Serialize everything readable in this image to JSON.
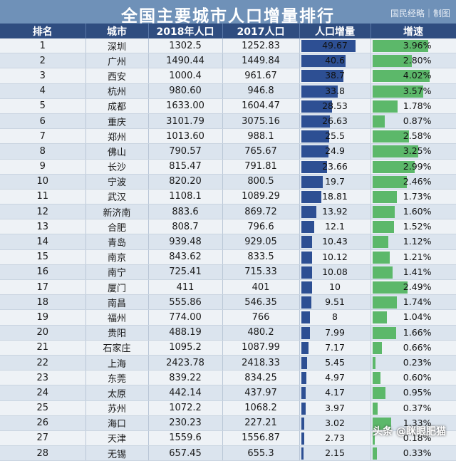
{
  "title": "全国主要城市人口增量排行",
  "brand": "国民经略｜制图",
  "watermark": "头条 @眯眼肥猫",
  "headers": [
    "排名",
    "城市",
    "2018年人口",
    "2017人口",
    "人口增量",
    "增速"
  ],
  "colors": {
    "header_bg": "#2f4d80",
    "bar": "#2d4f93",
    "speed_bar": "#5cb86a",
    "title_bg": "#6f91b8"
  },
  "chart_data": {
    "type": "table",
    "title": "全国主要城市人口增量排行",
    "columns": [
      "排名",
      "城市",
      "2018年人口",
      "2017人口",
      "人口增量",
      "增速"
    ],
    "rows": [
      {
        "rank": "1",
        "city": "深圳",
        "pop2018": "1302.5",
        "pop2017": "1252.83",
        "increase": "49.67",
        "inc_value": 49.67,
        "growth": "3.96%",
        "growth_value": 3.96
      },
      {
        "rank": "2",
        "city": "广州",
        "pop2018": "1490.44",
        "pop2017": "1449.84",
        "increase": "40.6",
        "inc_value": 40.6,
        "growth": "2.80%",
        "growth_value": 2.8
      },
      {
        "rank": "3",
        "city": "西安",
        "pop2018": "1000.4",
        "pop2017": "961.67",
        "increase": "38.7",
        "inc_value": 38.7,
        "growth": "4.02%",
        "growth_value": 4.02
      },
      {
        "rank": "4",
        "city": "杭州",
        "pop2018": "980.60",
        "pop2017": "946.8",
        "increase": "33.8",
        "inc_value": 33.8,
        "growth": "3.57%",
        "growth_value": 3.57
      },
      {
        "rank": "5",
        "city": "成都",
        "pop2018": "1633.00",
        "pop2017": "1604.47",
        "increase": "28.53",
        "inc_value": 28.53,
        "growth": "1.78%",
        "growth_value": 1.78
      },
      {
        "rank": "6",
        "city": "重庆",
        "pop2018": "3101.79",
        "pop2017": "3075.16",
        "increase": "26.63",
        "inc_value": 26.63,
        "growth": "0.87%",
        "growth_value": 0.87
      },
      {
        "rank": "7",
        "city": "郑州",
        "pop2018": "1013.60",
        "pop2017": "988.1",
        "increase": "25.5",
        "inc_value": 25.5,
        "growth": "2.58%",
        "growth_value": 2.58
      },
      {
        "rank": "8",
        "city": "佛山",
        "pop2018": "790.57",
        "pop2017": "765.67",
        "increase": "24.9",
        "inc_value": 24.9,
        "growth": "3.25%",
        "growth_value": 3.25
      },
      {
        "rank": "9",
        "city": "长沙",
        "pop2018": "815.47",
        "pop2017": "791.81",
        "increase": "23.66",
        "inc_value": 23.66,
        "growth": "2.99%",
        "growth_value": 2.99
      },
      {
        "rank": "10",
        "city": "宁波",
        "pop2018": "820.20",
        "pop2017": "800.5",
        "increase": "19.7",
        "inc_value": 19.7,
        "growth": "2.46%",
        "growth_value": 2.46
      },
      {
        "rank": "11",
        "city": "武汉",
        "pop2018": "1108.1",
        "pop2017": "1089.29",
        "increase": "18.81",
        "inc_value": 18.81,
        "growth": "1.73%",
        "growth_value": 1.73
      },
      {
        "rank": "12",
        "city": "新济南",
        "pop2018": "883.6",
        "pop2017": "869.72",
        "increase": "13.92",
        "inc_value": 13.92,
        "growth": "1.60%",
        "growth_value": 1.6
      },
      {
        "rank": "13",
        "city": "合肥",
        "pop2018": "808.7",
        "pop2017": "796.6",
        "increase": "12.1",
        "inc_value": 12.1,
        "growth": "1.52%",
        "growth_value": 1.52
      },
      {
        "rank": "14",
        "city": "青岛",
        "pop2018": "939.48",
        "pop2017": "929.05",
        "increase": "10.43",
        "inc_value": 10.43,
        "growth": "1.12%",
        "growth_value": 1.12
      },
      {
        "rank": "15",
        "city": "南京",
        "pop2018": "843.62",
        "pop2017": "833.5",
        "increase": "10.12",
        "inc_value": 10.12,
        "growth": "1.21%",
        "growth_value": 1.21
      },
      {
        "rank": "16",
        "city": "南宁",
        "pop2018": "725.41",
        "pop2017": "715.33",
        "increase": "10.08",
        "inc_value": 10.08,
        "growth": "1.41%",
        "growth_value": 1.41
      },
      {
        "rank": "17",
        "city": "厦门",
        "pop2018": "411",
        "pop2017": "401",
        "increase": "10",
        "inc_value": 10,
        "growth": "2.49%",
        "growth_value": 2.49
      },
      {
        "rank": "18",
        "city": "南昌",
        "pop2018": "555.86",
        "pop2017": "546.35",
        "increase": "9.51",
        "inc_value": 9.51,
        "growth": "1.74%",
        "growth_value": 1.74
      },
      {
        "rank": "19",
        "city": "福州",
        "pop2018": "774.00",
        "pop2017": "766",
        "increase": "8",
        "inc_value": 8,
        "growth": "1.04%",
        "growth_value": 1.04
      },
      {
        "rank": "20",
        "city": "贵阳",
        "pop2018": "488.19",
        "pop2017": "480.2",
        "increase": "7.99",
        "inc_value": 7.99,
        "growth": "1.66%",
        "growth_value": 1.66
      },
      {
        "rank": "21",
        "city": "石家庄",
        "pop2018": "1095.2",
        "pop2017": "1087.99",
        "increase": "7.17",
        "inc_value": 7.17,
        "growth": "0.66%",
        "growth_value": 0.66
      },
      {
        "rank": "22",
        "city": "上海",
        "pop2018": "2423.78",
        "pop2017": "2418.33",
        "increase": "5.45",
        "inc_value": 5.45,
        "growth": "0.23%",
        "growth_value": 0.23
      },
      {
        "rank": "23",
        "city": "东莞",
        "pop2018": "839.22",
        "pop2017": "834.25",
        "increase": "4.97",
        "inc_value": 4.97,
        "growth": "0.60%",
        "growth_value": 0.6
      },
      {
        "rank": "24",
        "city": "太原",
        "pop2018": "442.14",
        "pop2017": "437.97",
        "increase": "4.17",
        "inc_value": 4.17,
        "growth": "0.95%",
        "growth_value": 0.95
      },
      {
        "rank": "25",
        "city": "苏州",
        "pop2018": "1072.2",
        "pop2017": "1068.2",
        "increase": "3.97",
        "inc_value": 3.97,
        "growth": "0.37%",
        "growth_value": 0.37
      },
      {
        "rank": "26",
        "city": "海口",
        "pop2018": "230.23",
        "pop2017": "227.21",
        "increase": "3.02",
        "inc_value": 3.02,
        "growth": "1.33%",
        "growth_value": 1.33
      },
      {
        "rank": "27",
        "city": "天津",
        "pop2018": "1559.6",
        "pop2017": "1556.87",
        "increase": "2.73",
        "inc_value": 2.73,
        "growth": "0.18%",
        "growth_value": 0.18
      },
      {
        "rank": "28",
        "city": "无锡",
        "pop2018": "657.45",
        "pop2017": "655.3",
        "increase": "2.15",
        "inc_value": 2.15,
        "growth": "0.33%",
        "growth_value": 0.33
      }
    ]
  }
}
